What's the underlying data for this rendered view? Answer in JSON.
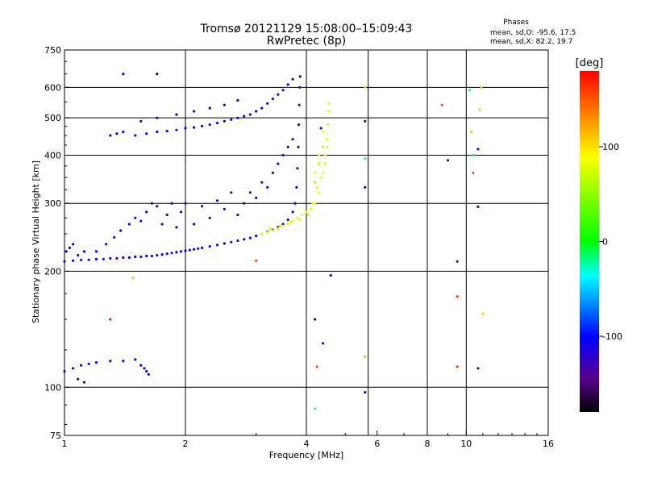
{
  "header": {
    "title_line1": "Tromsø 20121129 15:08:00–15:09:43",
    "title_line2": "RwPretec (8p)",
    "stats_title": "Phases",
    "stats_line1": "mean, sd,O: -95.6, 17.5",
    "stats_line2": "mean, sd,X:  82.2, 19.7"
  },
  "colorbar": {
    "unit": "[deg]",
    "ticks": [
      {
        "value": 100,
        "label": "100"
      },
      {
        "value": 0,
        "label": "0"
      },
      {
        "value": -100,
        "label": "-100"
      }
    ],
    "range": [
      -180,
      180
    ]
  },
  "chart_data": {
    "type": "scatter",
    "title": "Tromsø 20121129 15:08:00–15:09:43",
    "subtitle": "RwPretec (8p)",
    "xlabel": "Frequency [MHz]",
    "ylabel": "Stationary phase Virtual Height [km]",
    "xscale": "log",
    "yscale": "log",
    "xlim": [
      1,
      16
    ],
    "ylim": [
      75,
      750
    ],
    "xticks": [
      {
        "value": 1,
        "label": "1"
      },
      {
        "value": 2,
        "label": "2"
      },
      {
        "value": 4,
        "label": "4"
      },
      {
        "value": 6,
        "label": "6"
      },
      {
        "value": 8,
        "label": "8"
      },
      {
        "value": 10,
        "label": "10"
      },
      {
        "value": 16,
        "label": "16"
      }
    ],
    "yticks": [
      {
        "value": 75,
        "label": "75"
      },
      {
        "value": 100,
        "label": "100"
      },
      {
        "value": 200,
        "label": "200"
      },
      {
        "value": 300,
        "label": "300"
      },
      {
        "value": 400,
        "label": "400"
      },
      {
        "value": 500,
        "label": "500"
      },
      {
        "value": 600,
        "label": "600"
      },
      {
        "value": 750,
        "label": "750"
      }
    ],
    "xgrid": [
      2,
      4,
      5.7,
      8,
      10
    ],
    "ygrid": [
      100,
      200,
      300,
      400,
      500,
      600
    ],
    "color_variable": "Phases [deg]",
    "series": [
      {
        "name": "O",
        "points": [
          [
            1.0,
            212,
            -100
          ],
          [
            1.05,
            213,
            -102
          ],
          [
            1.1,
            214,
            -98
          ],
          [
            1.15,
            214,
            -105
          ],
          [
            1.2,
            215,
            -100
          ],
          [
            1.25,
            215,
            -95
          ],
          [
            1.3,
            216,
            -100
          ],
          [
            1.35,
            216,
            -110
          ],
          [
            1.4,
            217,
            -100
          ],
          [
            1.45,
            217,
            -105
          ],
          [
            1.5,
            218,
            -100
          ],
          [
            1.55,
            218,
            -95
          ],
          [
            1.6,
            219,
            -100
          ],
          [
            1.65,
            219,
            -110
          ],
          [
            1.7,
            220,
            -100
          ],
          [
            1.75,
            221,
            -105
          ],
          [
            1.8,
            222,
            -100
          ],
          [
            1.85,
            223,
            -95
          ],
          [
            1.9,
            224,
            -100
          ],
          [
            1.95,
            225,
            -110
          ],
          [
            2.0,
            226,
            -100
          ],
          [
            2.05,
            227,
            -105
          ],
          [
            2.1,
            228,
            -100
          ],
          [
            2.15,
            229,
            -95
          ],
          [
            2.2,
            230,
            -100
          ],
          [
            2.3,
            232,
            -100
          ],
          [
            2.4,
            234,
            -105
          ],
          [
            2.5,
            236,
            -100
          ],
          [
            2.6,
            238,
            -95
          ],
          [
            2.7,
            240,
            -100
          ],
          [
            2.8,
            242,
            -105
          ],
          [
            2.9,
            244,
            -100
          ],
          [
            3.0,
            247,
            -110
          ],
          [
            3.1,
            250,
            -100
          ],
          [
            3.2,
            253,
            -115
          ],
          [
            3.3,
            256,
            -110
          ],
          [
            3.4,
            260,
            -120
          ],
          [
            3.5,
            265,
            -115
          ],
          [
            3.6,
            272,
            -120
          ],
          [
            3.7,
            285,
            -115
          ],
          [
            3.75,
            300,
            -120
          ],
          [
            3.78,
            330,
            -115
          ],
          [
            3.8,
            370,
            -120
          ],
          [
            3.82,
            420,
            -125
          ],
          [
            3.83,
            480,
            -120
          ],
          [
            3.84,
            540,
            -125
          ],
          [
            3.85,
            600,
            -120
          ],
          [
            3.86,
            640,
            -125
          ],
          [
            1.01,
            225,
            -100
          ],
          [
            1.03,
            230,
            -105
          ],
          [
            1.05,
            235,
            -100
          ],
          [
            1.08,
            220,
            -95
          ],
          [
            1.12,
            225,
            -100
          ],
          [
            1.2,
            225,
            -105
          ],
          [
            1.27,
            235,
            -110
          ],
          [
            1.33,
            245,
            -115
          ],
          [
            1.38,
            255,
            -120
          ],
          [
            1.45,
            265,
            -115
          ],
          [
            1.5,
            275,
            -120
          ],
          [
            1.55,
            270,
            -115
          ],
          [
            1.6,
            285,
            -120
          ],
          [
            1.65,
            300,
            -115
          ],
          [
            1.7,
            295,
            -110
          ],
          [
            1.75,
            265,
            -120
          ],
          [
            1.8,
            280,
            -115
          ],
          [
            1.85,
            300,
            -120
          ],
          [
            1.9,
            260,
            -110
          ],
          [
            1.95,
            285,
            -120
          ],
          [
            2.0,
            300,
            -115
          ],
          [
            2.1,
            265,
            -120
          ],
          [
            2.2,
            295,
            -115
          ],
          [
            2.3,
            275,
            -110
          ],
          [
            2.4,
            305,
            -120
          ],
          [
            2.5,
            290,
            -115
          ],
          [
            2.6,
            320,
            -120
          ],
          [
            2.7,
            280,
            -115
          ],
          [
            2.8,
            300,
            -110
          ],
          [
            2.9,
            320,
            -120
          ],
          [
            3.0,
            310,
            -115
          ],
          [
            3.1,
            340,
            -120
          ],
          [
            3.2,
            330,
            -115
          ],
          [
            3.3,
            360,
            -120
          ],
          [
            3.4,
            380,
            -115
          ],
          [
            3.5,
            400,
            -120
          ],
          [
            3.6,
            420,
            -115
          ],
          [
            3.7,
            440,
            -120
          ],
          [
            1.3,
            450,
            -100
          ],
          [
            1.35,
            455,
            -105
          ],
          [
            1.4,
            460,
            -100
          ],
          [
            1.5,
            450,
            -95
          ],
          [
            1.6,
            455,
            -100
          ],
          [
            1.7,
            460,
            -105
          ],
          [
            1.8,
            462,
            -100
          ],
          [
            1.9,
            465,
            -95
          ],
          [
            2.0,
            470,
            -100
          ],
          [
            2.1,
            472,
            -105
          ],
          [
            2.2,
            476,
            -100
          ],
          [
            2.3,
            480,
            -95
          ],
          [
            2.4,
            485,
            -100
          ],
          [
            2.5,
            490,
            -105
          ],
          [
            2.6,
            495,
            -100
          ],
          [
            2.7,
            500,
            -105
          ],
          [
            2.8,
            505,
            -110
          ],
          [
            2.9,
            510,
            -105
          ],
          [
            3.0,
            520,
            -110
          ],
          [
            3.1,
            530,
            -115
          ],
          [
            3.2,
            545,
            -110
          ],
          [
            3.3,
            560,
            -115
          ],
          [
            3.4,
            575,
            -120
          ],
          [
            3.5,
            590,
            -115
          ],
          [
            3.6,
            610,
            -120
          ],
          [
            3.7,
            630,
            -125
          ],
          [
            1.55,
            490,
            -105
          ],
          [
            1.7,
            500,
            -100
          ],
          [
            1.9,
            510,
            -105
          ],
          [
            2.1,
            520,
            -100
          ],
          [
            2.3,
            530,
            -105
          ],
          [
            2.5,
            540,
            -100
          ],
          [
            2.7,
            555,
            -105
          ],
          [
            1.0,
            110,
            -100
          ],
          [
            1.05,
            112,
            -105
          ],
          [
            1.1,
            114,
            -100
          ],
          [
            1.15,
            115,
            -95
          ],
          [
            1.2,
            116,
            -100
          ],
          [
            1.3,
            117,
            -105
          ],
          [
            1.4,
            117,
            -100
          ],
          [
            1.5,
            118,
            -95
          ],
          [
            1.55,
            114,
            -100
          ],
          [
            1.58,
            112,
            -105
          ],
          [
            1.6,
            110,
            -100
          ],
          [
            1.62,
            108,
            -105
          ],
          [
            1.08,
            105,
            -110
          ],
          [
            1.12,
            103,
            -115
          ]
        ]
      },
      {
        "name": "X",
        "points": [
          [
            3.1,
            250,
            80
          ],
          [
            3.2,
            252,
            82
          ],
          [
            3.3,
            255,
            85
          ],
          [
            3.4,
            258,
            80
          ],
          [
            3.5,
            262,
            82
          ],
          [
            3.6,
            266,
            85
          ],
          [
            3.7,
            270,
            80
          ],
          [
            3.8,
            275,
            82
          ],
          [
            3.9,
            280,
            85
          ],
          [
            4.0,
            285,
            80
          ],
          [
            4.1,
            290,
            82
          ],
          [
            4.2,
            300,
            85
          ],
          [
            4.3,
            320,
            80
          ],
          [
            4.4,
            360,
            82
          ],
          [
            4.45,
            400,
            85
          ],
          [
            4.5,
            440,
            80
          ],
          [
            4.52,
            480,
            82
          ],
          [
            4.53,
            520,
            85
          ],
          [
            4.55,
            545,
            80
          ],
          [
            3.25,
            258,
            75
          ],
          [
            3.45,
            262,
            70
          ],
          [
            3.65,
            268,
            78
          ],
          [
            3.85,
            272,
            75
          ],
          [
            4.05,
            280,
            72
          ],
          [
            4.15,
            300,
            78
          ],
          [
            4.25,
            330,
            75
          ],
          [
            4.35,
            350,
            80
          ],
          [
            4.45,
            380,
            75
          ],
          [
            4.5,
            420,
            72
          ],
          [
            4.2,
            340,
            60
          ],
          [
            4.3,
            380,
            65
          ],
          [
            4.4,
            420,
            60
          ],
          [
            4.2,
            360,
            90
          ],
          [
            4.3,
            400,
            95
          ],
          [
            4.4,
            460,
            90
          ]
        ]
      },
      {
        "name": "Scattered",
        "points": [
          [
            1.4,
            650,
            -110
          ],
          [
            1.7,
            650,
            -170
          ],
          [
            1.48,
            192,
            110
          ],
          [
            1.3,
            150,
            170
          ],
          [
            3.0,
            213,
            150
          ],
          [
            4.35,
            470,
            -120
          ],
          [
            4.2,
            150,
            -120
          ],
          [
            4.4,
            130,
            -120
          ],
          [
            4.25,
            113,
            150
          ],
          [
            4.2,
            88,
            -30
          ],
          [
            4.6,
            195,
            -120
          ],
          [
            5.6,
            600,
            110
          ],
          [
            5.6,
            490,
            -120
          ],
          [
            5.6,
            392,
            -40
          ],
          [
            5.6,
            330,
            -120
          ],
          [
            5.6,
            120,
            40
          ],
          [
            5.6,
            97,
            -120
          ],
          [
            8.7,
            540,
            150
          ],
          [
            9.0,
            388,
            -120
          ],
          [
            9.5,
            212,
            -140
          ],
          [
            9.5,
            172,
            160
          ],
          [
            9.5,
            113,
            160
          ],
          [
            10.2,
            590,
            -20
          ],
          [
            10.3,
            460,
            110
          ],
          [
            10.4,
            360,
            150
          ],
          [
            10.4,
            400,
            -20
          ],
          [
            10.7,
            415,
            -120
          ],
          [
            10.7,
            294,
            -120
          ],
          [
            10.7,
            112,
            -120
          ],
          [
            10.8,
            525,
            110
          ],
          [
            11.0,
            155,
            110
          ],
          [
            10.9,
            600,
            110
          ]
        ]
      }
    ]
  }
}
